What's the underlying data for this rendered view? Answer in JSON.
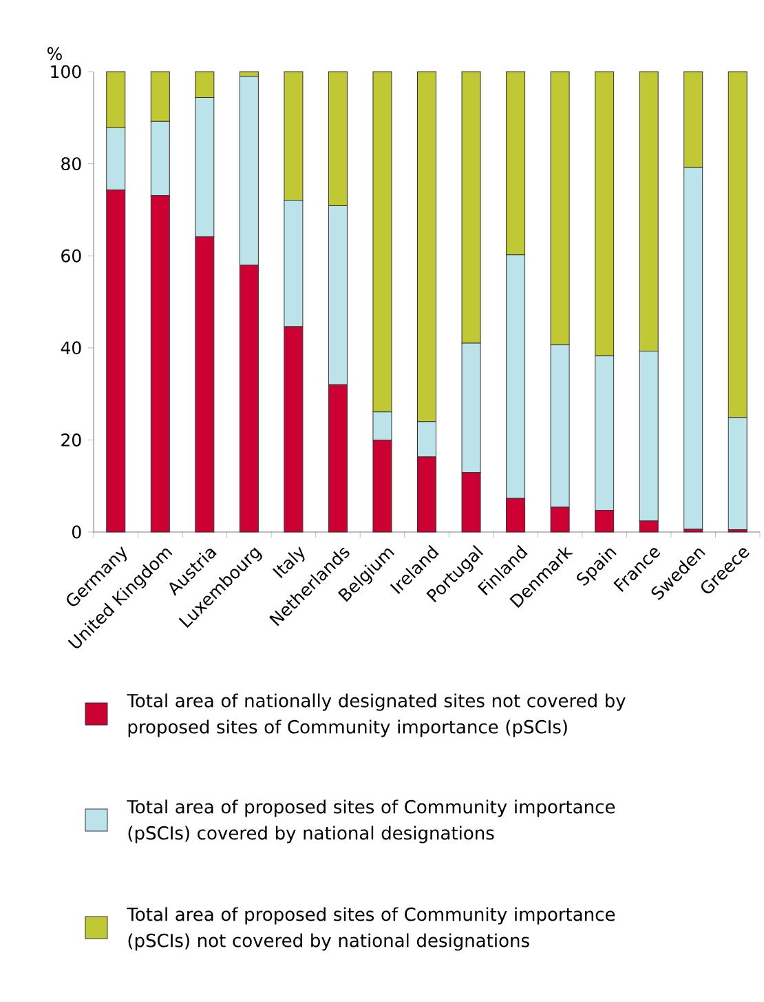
{
  "chart_data": {
    "type": "bar",
    "stacked": true,
    "ylabel": "%",
    "categories": [
      "Germany",
      "United Kingdom",
      "Austria",
      "Luxembourg",
      "Italy",
      "Netherlands",
      "Belgium",
      "Ireland",
      "Portugal",
      "Finland",
      "Denmark",
      "Spain",
      "France",
      "Sweden",
      "Greece"
    ],
    "series": [
      {
        "name": "Total area of nationally designated sites not covered by proposed sites of Community importance (pSCIs)",
        "color": "#cc0033",
        "values": [
          74.3,
          73.1,
          64.1,
          58.0,
          44.6,
          32.0,
          20.0,
          16.3,
          12.9,
          7.3,
          5.4,
          4.7,
          2.4,
          0.6,
          0.5
        ]
      },
      {
        "name": "Total area of proposed sites of Community importance (pSCIs) covered by national designations",
        "color": "#bde3ea",
        "values": [
          13.5,
          16.1,
          30.3,
          41.0,
          27.5,
          38.9,
          6.1,
          7.7,
          28.1,
          52.9,
          35.3,
          33.6,
          36.9,
          78.6,
          24.4
        ]
      },
      {
        "name": "Total area of proposed sites of Community importance (pSCIs) not covered by national designations",
        "color": "#c0c833",
        "values": [
          12.2,
          10.8,
          5.6,
          1.0,
          27.9,
          29.1,
          73.9,
          76.0,
          59.0,
          39.8,
          59.3,
          61.7,
          60.7,
          20.8,
          75.1
        ]
      }
    ],
    "ylim": [
      0,
      100
    ],
    "yticks": [
      0,
      20,
      40,
      60,
      80,
      100
    ],
    "legend": "bottom"
  }
}
